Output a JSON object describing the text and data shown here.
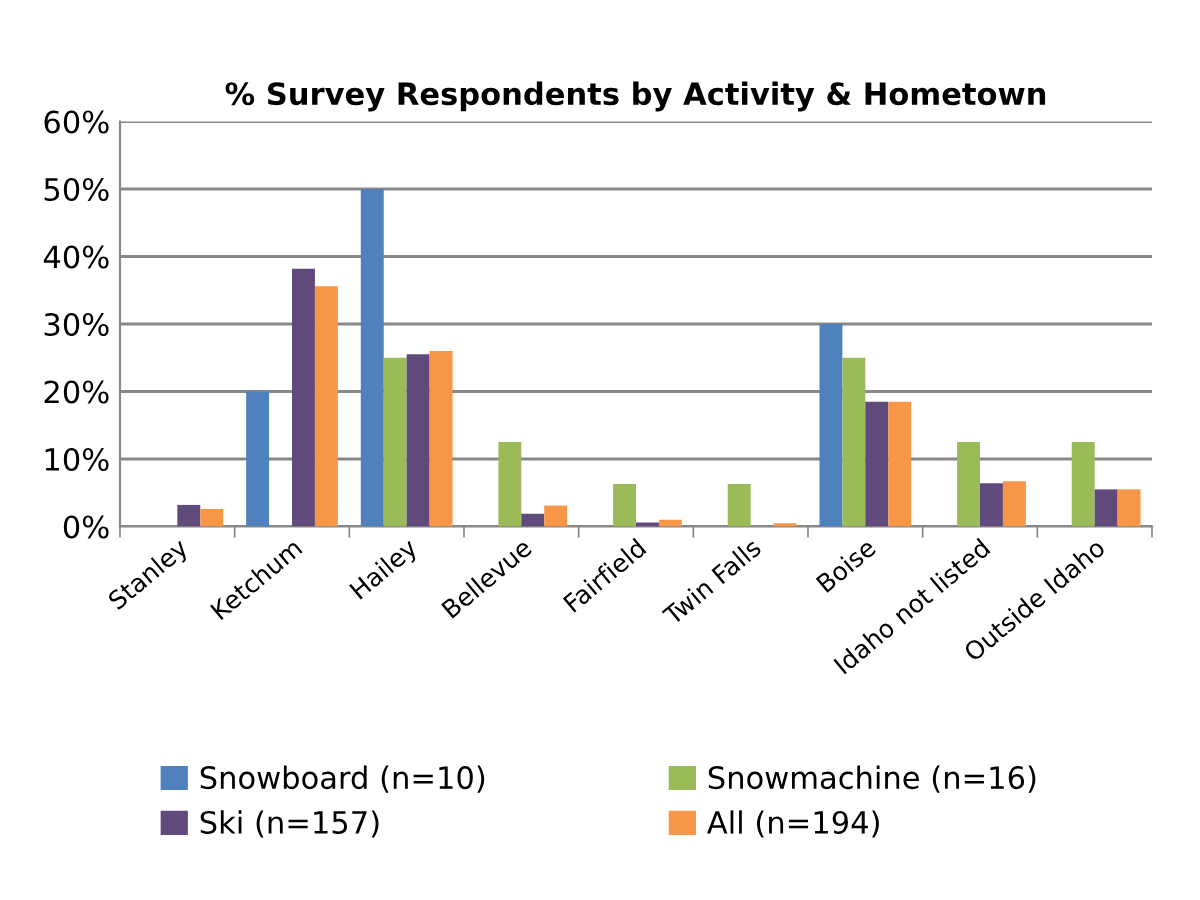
{
  "chart_data": {
    "type": "bar",
    "title": "% Survey Respondents by Activity & Hometown",
    "categories": [
      "Stanley",
      "Ketchum",
      "Hailey",
      "Bellevue",
      "Fairfield",
      "Twin Falls",
      "Boise",
      "Idaho not listed",
      "Outside Idaho"
    ],
    "series": [
      {
        "name": "Snowboard (n=10)",
        "color": "#4f81bd",
        "values": [
          0,
          20,
          50,
          0,
          0,
          0,
          30,
          0,
          0
        ]
      },
      {
        "name": "Snowmachine (n=16)",
        "color": "#9bbb59",
        "values": [
          0,
          0,
          25,
          12.5,
          6.3,
          6.3,
          25,
          12.5,
          12.5
        ]
      },
      {
        "name": "Ski (n=157)",
        "color": "#604a7b",
        "values": [
          3.2,
          38.2,
          25.5,
          1.9,
          0.6,
          0,
          18.5,
          6.4,
          5.5
        ]
      },
      {
        "name": "All (n=194)",
        "color": "#f79646",
        "values": [
          2.6,
          35.6,
          26,
          3.1,
          1.0,
          0.5,
          18.5,
          6.7,
          5.5
        ]
      }
    ],
    "ylim": [
      0,
      60
    ],
    "yticks": [
      {
        "value": 0,
        "label": "0%"
      },
      {
        "value": 10,
        "label": "10%"
      },
      {
        "value": 20,
        "label": "20%"
      },
      {
        "value": 30,
        "label": "30%"
      },
      {
        "value": 40,
        "label": "40%"
      },
      {
        "value": 50,
        "label": "50%"
      },
      {
        "value": 60,
        "label": "60%"
      }
    ],
    "grid": "y",
    "legend": "bottom"
  }
}
